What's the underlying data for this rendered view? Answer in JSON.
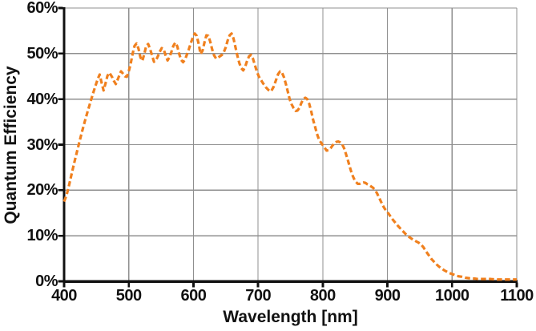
{
  "figure": {
    "background": "#FFFFFF",
    "axis_color": "#111111",
    "grid_color": "#8F8F8F",
    "text_color": "#111111"
  },
  "chart_data": {
    "type": "line",
    "title": "",
    "xlabel": "Wavelength [nm]",
    "ylabel": "Quantum Efficiency",
    "xlim": [
      400,
      1100
    ],
    "ylim": [
      0,
      60
    ],
    "x_ticks": [
      400,
      500,
      600,
      700,
      800,
      900,
      1000,
      1100
    ],
    "y_ticks": [
      0,
      10,
      20,
      30,
      40,
      50,
      60
    ],
    "y_tick_suffix": "%",
    "grid": true,
    "legend_position": "none",
    "series": [
      {
        "name": "Quantum Efficiency",
        "color": "#F0801E",
        "line_style": "dashed",
        "line_width": 3.2,
        "dash_pattern": [
          6.5,
          3.5
        ],
        "points": [
          [
            400,
            17.5
          ],
          [
            404,
            19.0
          ],
          [
            408,
            21.3
          ],
          [
            412,
            23.8
          ],
          [
            416,
            26.2
          ],
          [
            420,
            28.5
          ],
          [
            424,
            30.8
          ],
          [
            428,
            33.0
          ],
          [
            432,
            35.1
          ],
          [
            436,
            37.1
          ],
          [
            440,
            39.0
          ],
          [
            444,
            40.9
          ],
          [
            448,
            42.7
          ],
          [
            452,
            44.4
          ],
          [
            455,
            45.4
          ],
          [
            458,
            43.6
          ],
          [
            461,
            41.9
          ],
          [
            464,
            43.4
          ],
          [
            467,
            45.1
          ],
          [
            470,
            45.8
          ],
          [
            474,
            44.9
          ],
          [
            477,
            44.0
          ],
          [
            480,
            43.3
          ],
          [
            484,
            44.7
          ],
          [
            488,
            46.1
          ],
          [
            491,
            45.6
          ],
          [
            494,
            45.0
          ],
          [
            497,
            44.9
          ],
          [
            500,
            46.1
          ],
          [
            503,
            47.8
          ],
          [
            506,
            50.0
          ],
          [
            509,
            51.7
          ],
          [
            512,
            52.2
          ],
          [
            515,
            51.1
          ],
          [
            518,
            49.2
          ],
          [
            521,
            48.4
          ],
          [
            524,
            49.9
          ],
          [
            527,
            51.7
          ],
          [
            530,
            52.1
          ],
          [
            533,
            51.0
          ],
          [
            536,
            49.6
          ],
          [
            539,
            48.2
          ],
          [
            542,
            48.5
          ],
          [
            545,
            49.4
          ],
          [
            548,
            50.4
          ],
          [
            551,
            51.2
          ],
          [
            554,
            50.9
          ],
          [
            557,
            49.6
          ],
          [
            560,
            48.5
          ],
          [
            563,
            49.2
          ],
          [
            566,
            50.4
          ],
          [
            569,
            51.7
          ],
          [
            572,
            52.4
          ],
          [
            575,
            51.6
          ],
          [
            578,
            49.9
          ],
          [
            581,
            48.6
          ],
          [
            584,
            48.1
          ],
          [
            587,
            48.7
          ],
          [
            590,
            49.8
          ],
          [
            593,
            51.0
          ],
          [
            596,
            52.3
          ],
          [
            599,
            53.5
          ],
          [
            602,
            54.4
          ],
          [
            605,
            53.9
          ],
          [
            608,
            52.2
          ],
          [
            611,
            49.9
          ],
          [
            614,
            50.6
          ],
          [
            617,
            52.4
          ],
          [
            620,
            54.0
          ],
          [
            623,
            53.9
          ],
          [
            626,
            52.6
          ],
          [
            629,
            50.9
          ],
          [
            632,
            49.6
          ],
          [
            635,
            48.9
          ],
          [
            638,
            49.1
          ],
          [
            641,
            49.4
          ],
          [
            644,
            49.7
          ],
          [
            647,
            50.3
          ],
          [
            650,
            51.4
          ],
          [
            653,
            52.9
          ],
          [
            656,
            54.0
          ],
          [
            659,
            54.4
          ],
          [
            662,
            53.3
          ],
          [
            665,
            51.4
          ],
          [
            668,
            49.5
          ],
          [
            671,
            47.9
          ],
          [
            674,
            46.8
          ],
          [
            677,
            46.3
          ],
          [
            680,
            47.1
          ],
          [
            683,
            48.4
          ],
          [
            686,
            49.4
          ],
          [
            689,
            49.7
          ],
          [
            692,
            48.9
          ],
          [
            695,
            47.5
          ],
          [
            698,
            46.1
          ],
          [
            701,
            45.0
          ],
          [
            704,
            44.3
          ],
          [
            708,
            43.4
          ],
          [
            712,
            42.6
          ],
          [
            716,
            42.0
          ],
          [
            720,
            41.7
          ],
          [
            724,
            42.7
          ],
          [
            728,
            44.3
          ],
          [
            731,
            45.5
          ],
          [
            734,
            46.1
          ],
          [
            737,
            45.8
          ],
          [
            740,
            44.8
          ],
          [
            743,
            43.3
          ],
          [
            746,
            41.6
          ],
          [
            749,
            39.9
          ],
          [
            752,
            38.8
          ],
          [
            755,
            38.0
          ],
          [
            758,
            37.4
          ],
          [
            761,
            37.5
          ],
          [
            764,
            38.1
          ],
          [
            767,
            39.2
          ],
          [
            770,
            40.0
          ],
          [
            773,
            40.3
          ],
          [
            776,
            40.0
          ],
          [
            779,
            39.0
          ],
          [
            782,
            37.4
          ],
          [
            785,
            35.5
          ],
          [
            788,
            34.0
          ],
          [
            791,
            32.4
          ],
          [
            794,
            31.2
          ],
          [
            797,
            30.5
          ],
          [
            800,
            29.9
          ],
          [
            803,
            29.3
          ],
          [
            806,
            28.7
          ],
          [
            809,
            28.8
          ],
          [
            812,
            29.2
          ],
          [
            815,
            29.8
          ],
          [
            818,
            30.3
          ],
          [
            821,
            30.6
          ],
          [
            824,
            30.7
          ],
          [
            827,
            30.5
          ],
          [
            830,
            30.1
          ],
          [
            833,
            29.2
          ],
          [
            836,
            27.9
          ],
          [
            839,
            26.5
          ],
          [
            842,
            25.0
          ],
          [
            845,
            23.6
          ],
          [
            848,
            22.6
          ],
          [
            851,
            21.9
          ],
          [
            854,
            21.4
          ],
          [
            857,
            21.4
          ],
          [
            860,
            21.6
          ],
          [
            863,
            21.7
          ],
          [
            866,
            21.6
          ],
          [
            869,
            21.3
          ],
          [
            872,
            21.1
          ],
          [
            875,
            20.8
          ],
          [
            878,
            20.5
          ],
          [
            881,
            20.0
          ],
          [
            884,
            19.3
          ],
          [
            887,
            18.4
          ],
          [
            890,
            17.5
          ],
          [
            893,
            16.6
          ],
          [
            896,
            15.9
          ],
          [
            900,
            15.2
          ],
          [
            904,
            14.4
          ],
          [
            908,
            13.6
          ],
          [
            912,
            12.9
          ],
          [
            916,
            12.2
          ],
          [
            920,
            11.6
          ],
          [
            924,
            11.0
          ],
          [
            928,
            10.4
          ],
          [
            932,
            9.9
          ],
          [
            936,
            9.5
          ],
          [
            940,
            9.1
          ],
          [
            944,
            8.8
          ],
          [
            948,
            8.5
          ],
          [
            952,
            8.1
          ],
          [
            956,
            7.4
          ],
          [
            960,
            6.5
          ],
          [
            964,
            5.7
          ],
          [
            968,
            4.9
          ],
          [
            972,
            4.3
          ],
          [
            976,
            3.7
          ],
          [
            980,
            3.2
          ],
          [
            984,
            2.8
          ],
          [
            988,
            2.4
          ],
          [
            992,
            2.1
          ],
          [
            996,
            1.8
          ],
          [
            1000,
            1.6
          ],
          [
            1005,
            1.3
          ],
          [
            1010,
            1.1
          ],
          [
            1015,
            1.0
          ],
          [
            1020,
            0.8
          ],
          [
            1025,
            0.7
          ],
          [
            1030,
            0.6
          ],
          [
            1035,
            0.6
          ],
          [
            1040,
            0.5
          ],
          [
            1050,
            0.5
          ],
          [
            1060,
            0.5
          ],
          [
            1070,
            0.4
          ],
          [
            1080,
            0.4
          ],
          [
            1090,
            0.4
          ],
          [
            1100,
            0.4
          ]
        ]
      }
    ]
  }
}
